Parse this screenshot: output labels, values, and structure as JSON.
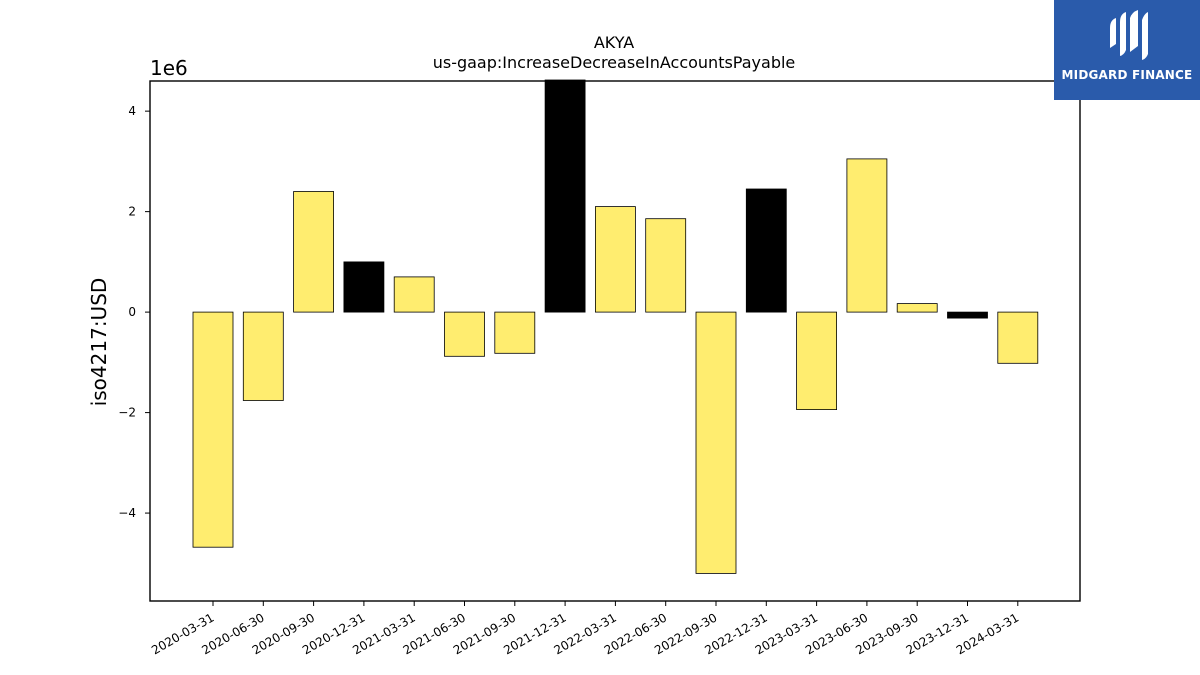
{
  "chart_data": {
    "type": "bar",
    "title": "AKYA",
    "subtitle": "us-gaap:IncreaseDecreaseInAccountsPayable",
    "ylabel": "iso4217:USD",
    "xlabel": "",
    "y_multiplier_label": "1e6",
    "ylim": [
      -5.75,
      4.6
    ],
    "yticks": [
      4,
      2,
      0,
      -2,
      -4
    ],
    "ytick_labels": [
      "4",
      "2",
      "0",
      "−2",
      "−4"
    ],
    "grid": false,
    "categories": [
      "2020-03-31",
      "2020-06-30",
      "2020-09-30",
      "2020-12-31",
      "2021-03-31",
      "2021-06-30",
      "2021-09-30",
      "2021-12-31",
      "2022-03-31",
      "2022-06-30",
      "2022-09-30",
      "2022-12-31",
      "2023-03-31",
      "2023-06-30",
      "2023-09-30",
      "2023-12-31",
      "2024-03-31"
    ],
    "values": [
      -4.68,
      -1.76,
      2.4,
      1.0,
      0.7,
      -0.88,
      -0.82,
      4.62,
      2.1,
      1.86,
      -5.2,
      2.45,
      -1.94,
      3.05,
      0.17,
      -0.12,
      -1.02
    ],
    "bar_colors": [
      "#ffed6f",
      "#ffed6f",
      "#ffed6f",
      "#000000",
      "#ffed6f",
      "#ffed6f",
      "#ffed6f",
      "#000000",
      "#ffed6f",
      "#ffed6f",
      "#ffed6f",
      "#000000",
      "#ffed6f",
      "#ffed6f",
      "#ffed6f",
      "#000000",
      "#ffed6f"
    ]
  },
  "logo": {
    "text": "MIDGARD FINANCE",
    "background": "#2a5bab"
  }
}
